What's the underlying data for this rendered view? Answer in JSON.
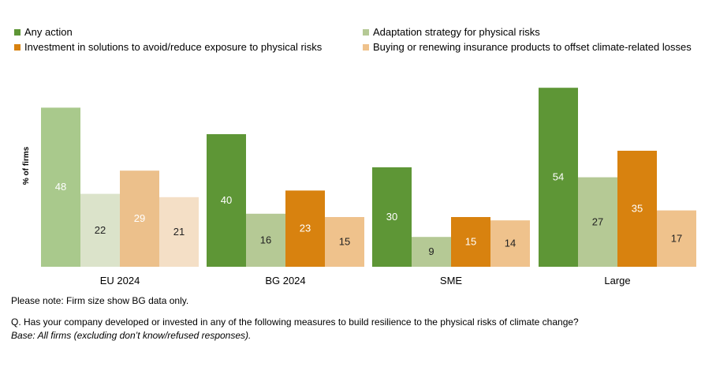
{
  "chart_data": {
    "type": "bar",
    "ylabel": "% of firms",
    "ylim": [
      0,
      60
    ],
    "grid": false,
    "legend_position": "top",
    "categories": [
      "EU 2024",
      "BG 2024",
      "SME",
      "Large"
    ],
    "series": [
      {
        "name": "Any action",
        "values": [
          48,
          40,
          30,
          54
        ]
      },
      {
        "name": "Adaptation strategy for physical risks",
        "values": [
          22,
          16,
          9,
          27
        ]
      },
      {
        "name": "Investment in solutions to avoid/reduce exposure to physical risks",
        "values": [
          29,
          23,
          15,
          35
        ]
      },
      {
        "name": "Buying or renewing insurance products to offset climate-related losses",
        "values": [
          21,
          15,
          14,
          17
        ]
      }
    ],
    "colors": {
      "full": [
        "#5e9636",
        "#b5c995",
        "#d8820f",
        "#efc28c"
      ],
      "muted": [
        "#a9c98c",
        "#dbe3ca",
        "#ecc08b",
        "#f4dfc6"
      ],
      "label_dark": "#222222",
      "label_light": "#ffffff"
    }
  },
  "notes": {
    "firm_size": "Please note: Firm size show BG data only.",
    "question": "Q. Has your company developed or invested in any of the following measures to build resilience to the physical risks of climate change?",
    "base": "Base: All firms (excluding don’t know/refused responses)."
  }
}
